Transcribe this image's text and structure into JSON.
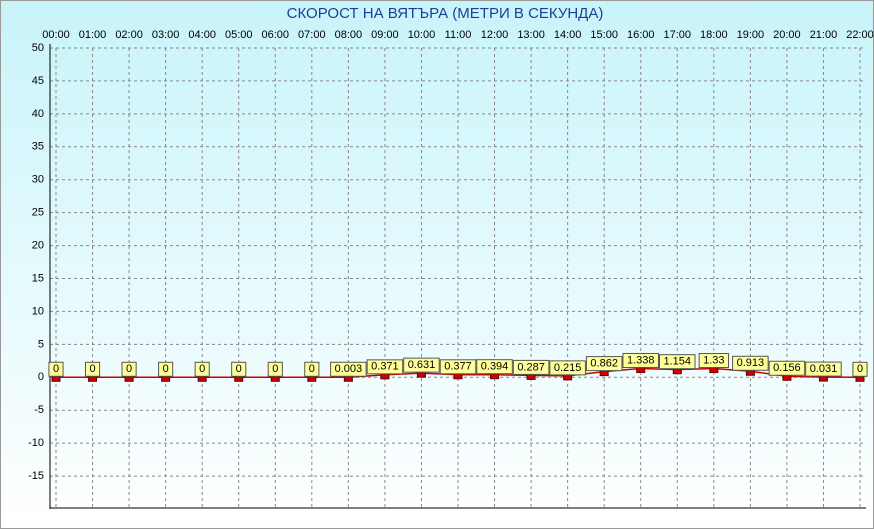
{
  "chart_data": {
    "type": "line",
    "title": "СКОРОСТ НА ВЯТЪРА (МЕТРИ В СЕКУНДА)",
    "categories": [
      "00:00",
      "01:00",
      "02:00",
      "03:00",
      "04:00",
      "05:00",
      "06:00",
      "07:00",
      "08:00",
      "09:00",
      "10:00",
      "11:00",
      "12:00",
      "13:00",
      "14:00",
      "15:00",
      "16:00",
      "17:00",
      "18:00",
      "19:00",
      "20:00",
      "21:00",
      "22:00"
    ],
    "values": [
      0,
      0,
      0,
      0,
      0,
      0,
      0,
      0,
      0.003,
      0.371,
      0.631,
      0.377,
      0.394,
      0.287,
      0.215,
      0.862,
      1.338,
      1.154,
      1.33,
      0.913,
      0.156,
      0.031,
      0
    ],
    "color": "#cc0000",
    "label_color": "#ffff99",
    "ylim": [
      -20,
      50
    ],
    "yticks": [
      50,
      45,
      40,
      35,
      30,
      25,
      20,
      15,
      10,
      5,
      0,
      -5,
      -10,
      -15
    ],
    "grid": true
  }
}
